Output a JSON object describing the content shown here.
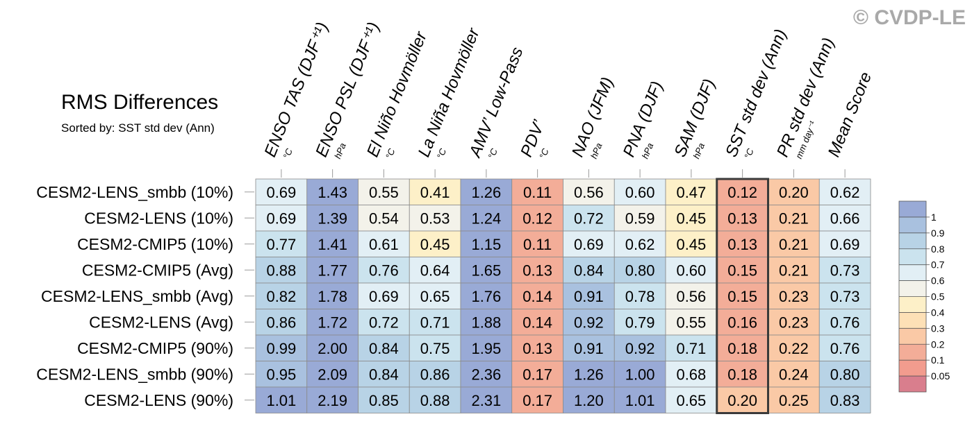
{
  "watermark": "© CVDP-LE",
  "chart_data": {
    "type": "heatmap",
    "title": "RMS Differences",
    "subtitle": "Sorted by: SST std dev (Ann)",
    "highlighted_column": "SST std dev (Ann)",
    "columns": [
      {
        "label": "ENSO TAS (DJF⁺¹)",
        "unit": "°C"
      },
      {
        "label": "ENSO PSL (DJF⁺¹)",
        "unit": "hPa"
      },
      {
        "label": "El Niño Hovmöller",
        "unit": "°C"
      },
      {
        "label": "La Niña Hovmöller",
        "unit": "°C"
      },
      {
        "label": "AMV’ Low-Pass",
        "unit": "°C"
      },
      {
        "label": "PDV’",
        "unit": "°C"
      },
      {
        "label": "NAO (JFM)",
        "unit": "hPa"
      },
      {
        "label": "PNA (DJF)",
        "unit": "hPa"
      },
      {
        "label": "SAM (DJF)",
        "unit": "hPa"
      },
      {
        "label": "SST std dev (Ann)",
        "unit": "°C"
      },
      {
        "label": "PR std dev (Ann)",
        "unit": "mm day⁻¹"
      },
      {
        "label": "Mean Score",
        "unit": ""
      }
    ],
    "rows": [
      "CESM2-LENS_smbb (10%)",
      "CESM2-LENS (10%)",
      "CESM2-CMIP5 (10%)",
      "CESM2-CMIP5 (Avg)",
      "CESM2-LENS_smbb (Avg)",
      "CESM2-LENS (Avg)",
      "CESM2-CMIP5 (90%)",
      "CESM2-LENS_smbb (90%)",
      "CESM2-LENS (90%)"
    ],
    "values": [
      [
        "0.69",
        "1.43",
        "0.55",
        "0.41",
        "1.26",
        "0.11",
        "0.56",
        "0.60",
        "0.47",
        "0.12",
        "0.20",
        "0.62"
      ],
      [
        "0.69",
        "1.39",
        "0.54",
        "0.53",
        "1.24",
        "0.12",
        "0.72",
        "0.59",
        "0.45",
        "0.13",
        "0.21",
        "0.66"
      ],
      [
        "0.77",
        "1.41",
        "0.61",
        "0.45",
        "1.15",
        "0.11",
        "0.69",
        "0.62",
        "0.45",
        "0.13",
        "0.21",
        "0.69"
      ],
      [
        "0.88",
        "1.77",
        "0.76",
        "0.64",
        "1.65",
        "0.13",
        "0.84",
        "0.80",
        "0.60",
        "0.15",
        "0.21",
        "0.73"
      ],
      [
        "0.82",
        "1.78",
        "0.69",
        "0.65",
        "1.76",
        "0.14",
        "0.91",
        "0.78",
        "0.56",
        "0.15",
        "0.23",
        "0.73"
      ],
      [
        "0.86",
        "1.72",
        "0.72",
        "0.71",
        "1.88",
        "0.14",
        "0.92",
        "0.79",
        "0.55",
        "0.16",
        "0.23",
        "0.76"
      ],
      [
        "0.99",
        "2.00",
        "0.84",
        "0.75",
        "1.95",
        "0.13",
        "0.91",
        "0.92",
        "0.71",
        "0.18",
        "0.22",
        "0.76"
      ],
      [
        "0.95",
        "2.09",
        "0.84",
        "0.86",
        "2.36",
        "0.17",
        "1.26",
        "1.00",
        "0.68",
        "0.18",
        "0.24",
        "0.80"
      ],
      [
        "1.01",
        "2.19",
        "0.85",
        "0.88",
        "2.31",
        "0.17",
        "1.20",
        "1.01",
        "0.65",
        "0.20",
        "0.25",
        "0.83"
      ]
    ],
    "colorbar": {
      "levels": [
        "1",
        "0.9",
        "0.8",
        "0.7",
        "0.6",
        "0.5",
        "0.4",
        "0.3",
        "0.2",
        "0.1",
        "0.05"
      ],
      "colors_top_to_bottom": [
        "#99aad6",
        "#a9c1df",
        "#b8d3e6",
        "#cbe3ee",
        "#e2eff5",
        "#f3f2ea",
        "#fdf0c8",
        "#fde0b6",
        "#fac9a6",
        "#f3ad98",
        "#f29c8e",
        "#d97e8d"
      ]
    }
  }
}
